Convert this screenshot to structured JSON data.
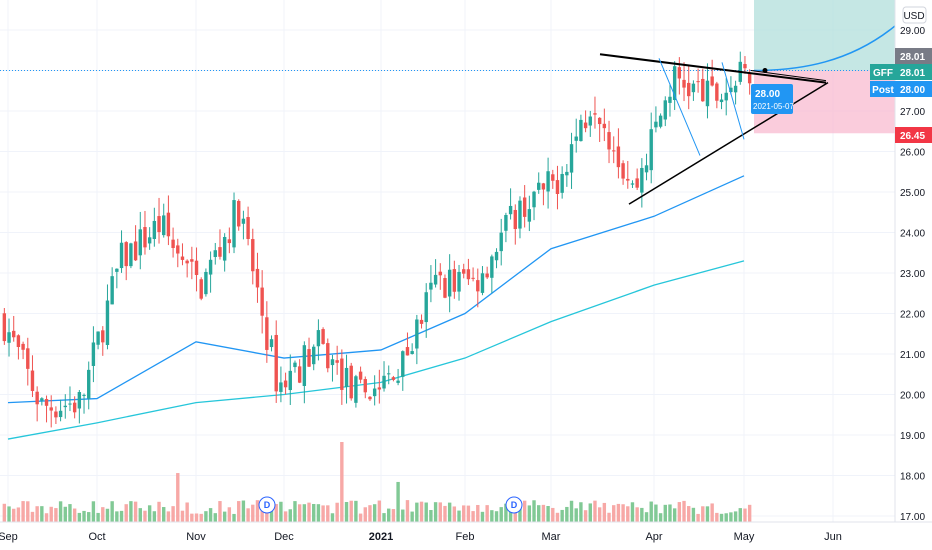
{
  "chart_data": {
    "type": "candlestick",
    "symbol": "GFF",
    "currency": "USD",
    "ylim": [
      16.8,
      29.4
    ],
    "y_ticks": [
      "17.00",
      "18.00",
      "19.00",
      "20.00",
      "21.00",
      "22.00",
      "23.00",
      "24.00",
      "25.00",
      "26.00",
      "27.00",
      "28.00",
      "29.00"
    ],
    "x_ticks": [
      "Sep",
      "Oct",
      "Nov",
      "Dec",
      "2021",
      "Feb",
      "Mar",
      "Apr",
      "May",
      "Jun"
    ],
    "price_series": {
      "x_labels": [
        "Sep",
        "Oct",
        "Nov",
        "Dec",
        "2021",
        "Feb",
        "Mar",
        "Apr",
        "May"
      ],
      "close_points": [
        [
          "Sep",
          21.9
        ],
        [
          "Sep",
          19.7
        ],
        [
          "Oct",
          19.8
        ],
        [
          "Oct",
          23.3
        ],
        [
          "Oct",
          24.2
        ],
        [
          "Nov",
          22.6
        ],
        [
          "Nov",
          24.6
        ],
        [
          "Nov",
          20.2
        ],
        [
          "Dec",
          21.2
        ],
        [
          "Dec",
          20.0
        ],
        [
          "2021",
          20.4
        ],
        [
          "2021",
          22.8
        ],
        [
          "Feb",
          22.8
        ],
        [
          "Feb",
          24.5
        ],
        [
          "Mar",
          25.2
        ],
        [
          "Mar",
          27.4
        ],
        [
          "Apr",
          25.0
        ],
        [
          "Apr",
          27.8
        ],
        [
          "May",
          27.3
        ],
        [
          "May",
          28.0
        ]
      ]
    },
    "moving_averages": [
      {
        "color": "#2196f3",
        "points": [
          [
            "Sep",
            19.8
          ],
          [
            "Oct",
            19.9
          ],
          [
            "Nov",
            21.3
          ],
          [
            "Dec",
            20.9
          ],
          [
            "2021",
            21.1
          ],
          [
            "Feb",
            22.0
          ],
          [
            "Mar",
            23.6
          ],
          [
            "Apr",
            24.4
          ],
          [
            "May",
            25.4
          ]
        ]
      },
      {
        "color": "#26c6da",
        "points": [
          [
            "Sep",
            18.9
          ],
          [
            "Oct",
            19.3
          ],
          [
            "Nov",
            19.8
          ],
          [
            "Dec",
            20.0
          ],
          [
            "2021",
            20.3
          ],
          [
            "Feb",
            20.9
          ],
          [
            "Mar",
            21.8
          ],
          [
            "Apr",
            22.7
          ],
          [
            "May",
            23.3
          ]
        ]
      }
    ],
    "triangle_pattern": {
      "upper_trendline": [
        [
          "Mar",
          28.4
        ],
        [
          "Jun",
          27.7
        ]
      ],
      "lower_trendline": [
        [
          "Mar",
          24.7
        ],
        [
          "May",
          27.0
        ]
      ]
    },
    "position": {
      "entry": "28.00",
      "target_zone_top": 29.4,
      "stop": "26.45",
      "color_profit": "#b2dfdb",
      "color_loss": "#f8bbd0"
    },
    "price_labels": [
      {
        "text": "28.01",
        "color": "#787b86"
      },
      {
        "text": "28.01",
        "color": "#26a69a",
        "prefix": "GFF"
      },
      {
        "text": "28.00",
        "color": "#2196f3",
        "prefix": "Post"
      },
      {
        "text": "26.45",
        "color": "#f23645"
      }
    ],
    "callout": {
      "price": "28.00",
      "date": "2021-05-07"
    },
    "dividend_markers": [
      "D",
      "D"
    ],
    "colors": {
      "up": "#26a69a",
      "down": "#ef5350",
      "vol_up": "#81c995",
      "vol_down": "#f7a8a6"
    }
  }
}
